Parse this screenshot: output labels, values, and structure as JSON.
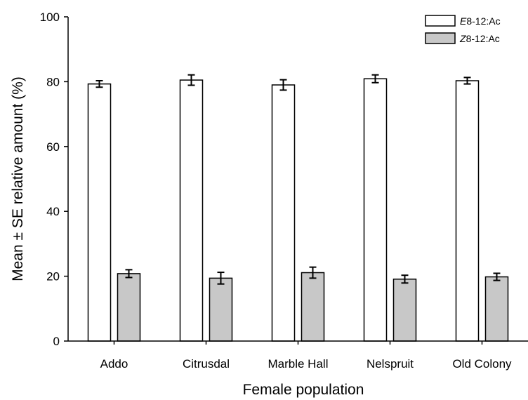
{
  "chart_data": {
    "type": "bar",
    "title": "",
    "xlabel": "Female population",
    "ylabel": "Mean ± SE relative amount (%)",
    "ylim": [
      0,
      100
    ],
    "yticks": [
      0,
      20,
      40,
      60,
      80,
      100
    ],
    "grid": false,
    "legend_position": "top-right",
    "categories": [
      "Addo",
      "Citrusdal",
      "Marble Hall",
      "Nelspruit",
      "Old Colony"
    ],
    "series": [
      {
        "name": "E8-12:Ac",
        "name_italic_prefix": "E",
        "name_rest": "8-12:Ac",
        "color": "#ffffff",
        "values": [
          79.3,
          80.5,
          79.0,
          80.9,
          80.3
        ],
        "errors": [
          1.0,
          1.6,
          1.6,
          1.2,
          1.0
        ]
      },
      {
        "name": "Z8-12:Ac",
        "name_italic_prefix": "Z",
        "name_rest": "8-12:Ac",
        "color": "#c8c8c8",
        "values": [
          20.8,
          19.4,
          21.1,
          19.1,
          19.8
        ],
        "errors": [
          1.2,
          1.8,
          1.7,
          1.2,
          1.1
        ]
      }
    ]
  }
}
